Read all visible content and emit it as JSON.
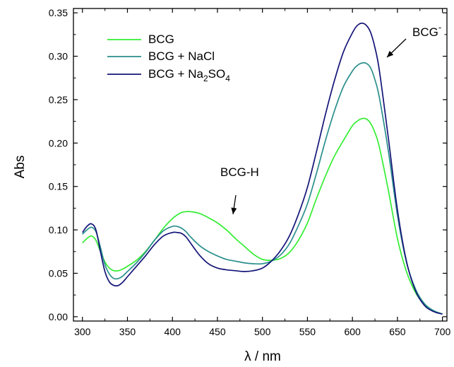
{
  "chart_data": {
    "type": "line",
    "xlabel": "λ / nm",
    "ylabel": "Abs",
    "xlim": [
      290,
      705
    ],
    "ylim": [
      -0.005,
      0.355
    ],
    "xticks": [
      300,
      350,
      400,
      450,
      500,
      550,
      600,
      650,
      700
    ],
    "yticks": [
      0.0,
      0.05,
      0.1,
      0.15,
      0.2,
      0.25,
      0.3,
      0.35
    ],
    "ytick_labels": [
      "0.00",
      "0.05",
      "0.10",
      "0.15",
      "0.20",
      "0.25",
      "0.30",
      "0.35"
    ],
    "grid": false,
    "legend_position": "top-left",
    "series": [
      {
        "name": "BCG",
        "color": "#33ee33",
        "x": [
          300,
          305,
          310,
          315,
          320,
          325,
          330,
          335,
          340,
          345,
          350,
          360,
          370,
          380,
          390,
          400,
          405,
          410,
          415,
          420,
          430,
          440,
          450,
          460,
          470,
          480,
          490,
          500,
          510,
          520,
          530,
          540,
          550,
          560,
          570,
          580,
          590,
          600,
          605,
          610,
          615,
          620,
          625,
          630,
          640,
          650,
          660,
          670,
          680,
          690,
          700
        ],
        "y": [
          0.085,
          0.09,
          0.093,
          0.088,
          0.075,
          0.063,
          0.056,
          0.053,
          0.053,
          0.055,
          0.058,
          0.065,
          0.075,
          0.088,
          0.102,
          0.113,
          0.117,
          0.12,
          0.121,
          0.121,
          0.119,
          0.114,
          0.108,
          0.1,
          0.09,
          0.081,
          0.072,
          0.066,
          0.065,
          0.067,
          0.074,
          0.088,
          0.108,
          0.136,
          0.162,
          0.185,
          0.203,
          0.22,
          0.225,
          0.228,
          0.228,
          0.223,
          0.212,
          0.195,
          0.145,
          0.09,
          0.052,
          0.028,
          0.014,
          0.007,
          0.003
        ]
      },
      {
        "name": "BCG + NaCl",
        "color": "#2a8f8c",
        "x": [
          300,
          305,
          310,
          315,
          320,
          325,
          330,
          335,
          340,
          345,
          350,
          360,
          370,
          380,
          390,
          400,
          405,
          410,
          415,
          420,
          430,
          440,
          450,
          460,
          470,
          480,
          490,
          500,
          510,
          520,
          530,
          540,
          550,
          560,
          570,
          580,
          590,
          600,
          605,
          610,
          615,
          620,
          625,
          630,
          640,
          650,
          660,
          670,
          680,
          690,
          700
        ],
        "y": [
          0.095,
          0.1,
          0.103,
          0.098,
          0.08,
          0.06,
          0.049,
          0.044,
          0.044,
          0.047,
          0.052,
          0.062,
          0.074,
          0.088,
          0.099,
          0.104,
          0.104,
          0.102,
          0.098,
          0.092,
          0.082,
          0.075,
          0.07,
          0.066,
          0.064,
          0.062,
          0.061,
          0.061,
          0.064,
          0.071,
          0.084,
          0.105,
          0.13,
          0.165,
          0.203,
          0.237,
          0.265,
          0.283,
          0.289,
          0.292,
          0.292,
          0.287,
          0.273,
          0.252,
          0.19,
          0.117,
          0.063,
          0.032,
          0.015,
          0.007,
          0.003
        ]
      },
      {
        "name": "BCG + Na2SO4",
        "color": "#141478",
        "x": [
          300,
          305,
          310,
          315,
          320,
          325,
          330,
          335,
          340,
          345,
          350,
          360,
          370,
          380,
          390,
          400,
          405,
          410,
          415,
          420,
          430,
          440,
          450,
          460,
          470,
          480,
          490,
          500,
          510,
          520,
          530,
          540,
          550,
          560,
          570,
          580,
          590,
          600,
          605,
          610,
          615,
          620,
          625,
          630,
          640,
          650,
          660,
          670,
          680,
          690,
          700
        ],
        "y": [
          0.097,
          0.104,
          0.107,
          0.1,
          0.075,
          0.052,
          0.04,
          0.036,
          0.036,
          0.04,
          0.046,
          0.058,
          0.07,
          0.083,
          0.093,
          0.097,
          0.097,
          0.096,
          0.092,
          0.085,
          0.071,
          0.061,
          0.056,
          0.054,
          0.053,
          0.052,
          0.053,
          0.056,
          0.064,
          0.076,
          0.093,
          0.118,
          0.149,
          0.19,
          0.233,
          0.272,
          0.305,
          0.327,
          0.335,
          0.338,
          0.336,
          0.328,
          0.31,
          0.283,
          0.205,
          0.123,
          0.064,
          0.03,
          0.013,
          0.006,
          0.003
        ]
      }
    ],
    "legend": {
      "entries": [
        {
          "prefix": "BCG",
          "sub": "",
          "mid": "",
          "sub2": ""
        },
        {
          "prefix": "BCG + NaCl",
          "sub": "",
          "mid": "",
          "sub2": ""
        },
        {
          "prefix": "BCG + Na",
          "sub": "2",
          "mid": "SO",
          "sub2": "4"
        }
      ]
    },
    "annotations": [
      {
        "text": "BCG",
        "superscript": "-",
        "x": 655,
        "y": 0.328
      },
      {
        "text": "BCG-H",
        "superscript": "",
        "x": 465,
        "y": 0.155
      }
    ]
  }
}
